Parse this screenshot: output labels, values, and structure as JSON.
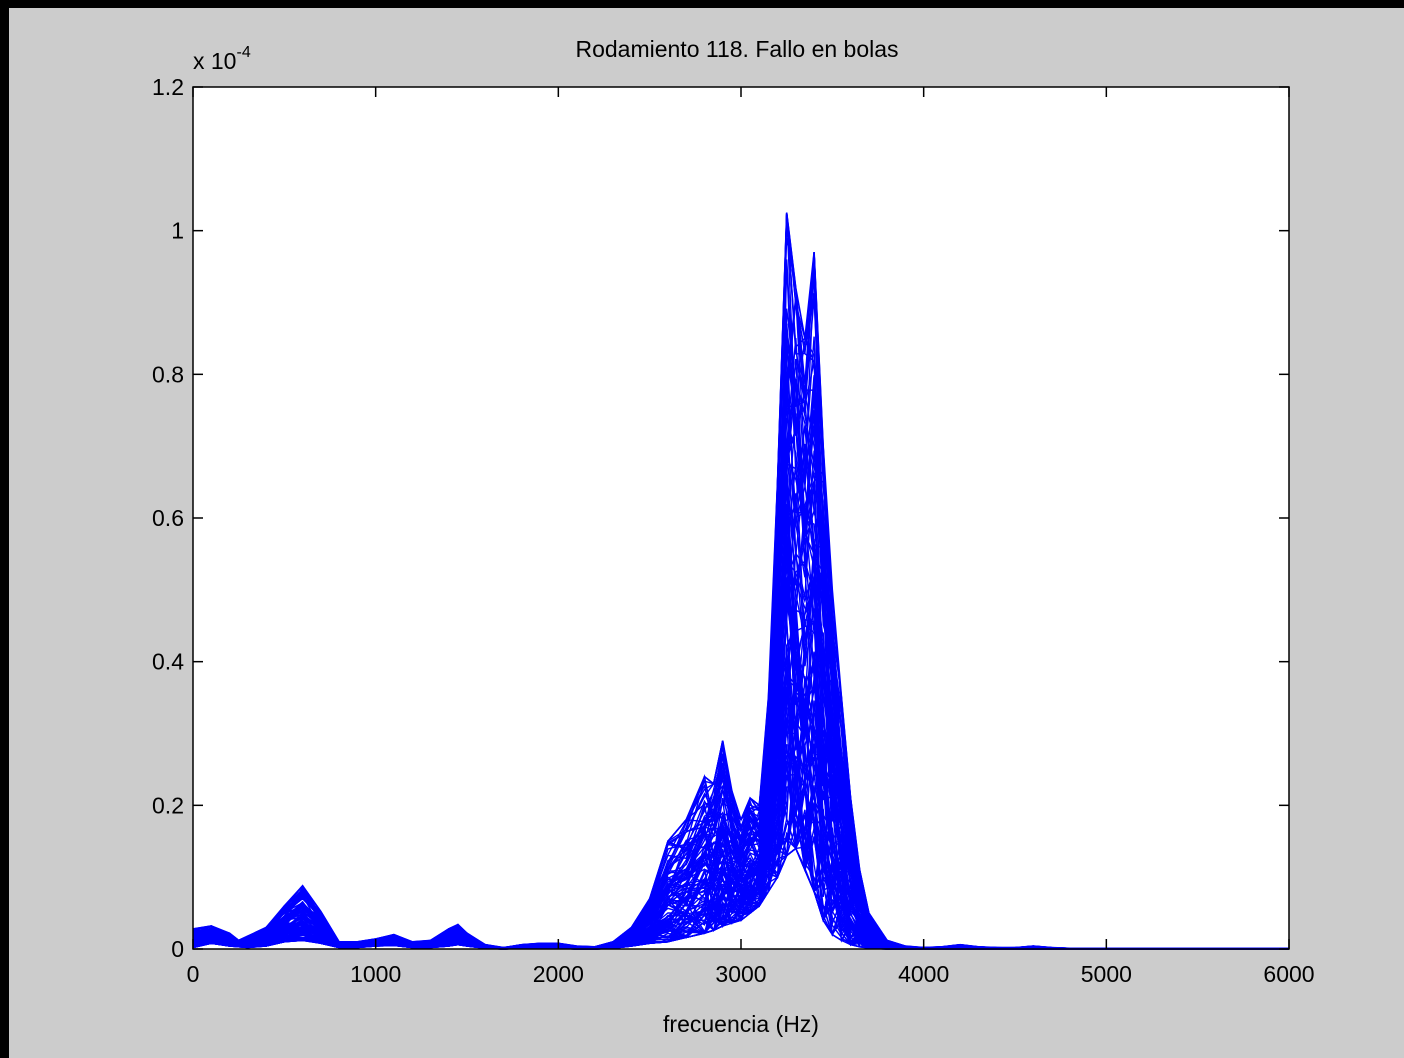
{
  "colors": {
    "figure_background": "#cccccc",
    "axes_background": "#ffffff",
    "series": "#0000ff",
    "axes": "#000000"
  },
  "chart_data": {
    "type": "line",
    "title": "Rodamiento 118. Fallo en bolas",
    "xlabel": "frecuencia (Hz)",
    "ylabel": "",
    "xlim": [
      0,
      6000
    ],
    "ylim": [
      0,
      0.00012
    ],
    "y_multiplier_label": "x 10",
    "y_multiplier_exponent": "-4",
    "xticks": [
      0,
      1000,
      2000,
      3000,
      4000,
      5000,
      6000
    ],
    "xtick_labels": [
      "0",
      "1000",
      "2000",
      "3000",
      "4000",
      "5000",
      "6000"
    ],
    "yticks": [
      0,
      2e-05,
      4e-05,
      6e-05,
      8e-05,
      0.0001,
      0.00012
    ],
    "ytick_labels": [
      "0",
      "0.2",
      "0.4",
      "0.6",
      "0.8",
      "1",
      "1.2"
    ],
    "grid": false,
    "legend": "none",
    "series_count": 120,
    "x": [
      0,
      100,
      200,
      250,
      300,
      400,
      500,
      600,
      700,
      800,
      900,
      1000,
      1100,
      1200,
      1300,
      1400,
      1450,
      1500,
      1600,
      1700,
      1800,
      1900,
      2000,
      2100,
      2200,
      2300,
      2400,
      2500,
      2600,
      2700,
      2800,
      2850,
      2900,
      2950,
      3000,
      3050,
      3100,
      3150,
      3200,
      3250,
      3300,
      3350,
      3400,
      3450,
      3500,
      3550,
      3600,
      3650,
      3700,
      3800,
      3900,
      4000,
      4100,
      4200,
      4300,
      4400,
      4500,
      4600,
      4700,
      4800,
      5000,
      5200,
      5400,
      5600,
      5800,
      6000
    ],
    "envelope_max": [
      2.8e-06,
      3.2e-06,
      2.2e-06,
      1.2e-06,
      1.8e-06,
      3e-06,
      6e-06,
      8.8e-06,
      5.2e-06,
      1e-06,
      1e-06,
      1.4e-06,
      2e-06,
      1e-06,
      1.2e-06,
      2.8e-06,
      3.4e-06,
      2.2e-06,
      6e-07,
      2e-07,
      6e-07,
      8e-07,
      8e-07,
      4e-07,
      3e-07,
      1e-06,
      3e-06,
      7e-06,
      1.5e-05,
      1.8e-05,
      2.4e-05,
      2.3e-05,
      2.9e-05,
      2.2e-05,
      1.8e-05,
      2.1e-05,
      2e-05,
      3.5e-05,
      6.5e-05,
      0.0001025,
      9.2e-05,
      8.5e-05,
      9.7e-05,
      7e-05,
      5e-05,
      3.5e-05,
      2.1e-05,
      1.1e-05,
      5e-06,
      1.2e-06,
      4e-07,
      2e-07,
      3e-07,
      6e-07,
      3e-07,
      2e-07,
      2e-07,
      4e-07,
      2e-07,
      1e-07,
      1e-07,
      1e-07,
      1e-07,
      1e-07,
      1e-07,
      1e-07
    ],
    "envelope_min": [
      2e-07,
      8e-07,
      4e-07,
      3e-07,
      2e-07,
      4e-07,
      1e-06,
      1.2e-06,
      8e-07,
      2e-07,
      2e-07,
      4e-07,
      5e-07,
      2e-07,
      2e-07,
      4e-07,
      6e-07,
      4e-07,
      1e-07,
      0.0,
      1e-07,
      1e-07,
      1e-07,
      0.0,
      0.0,
      1e-07,
      4e-07,
      8e-07,
      1e-06,
      1.6e-06,
      2.2e-06,
      2.6e-06,
      3.2e-06,
      3.6e-06,
      4e-06,
      5e-06,
      6e-06,
      8e-06,
      1e-05,
      1.3e-05,
      1.4e-05,
      1.1e-05,
      8e-06,
      4e-06,
      2e-06,
      1.2e-06,
      6e-07,
      3e-07,
      1e-07,
      0.0,
      0.0,
      0.0,
      0.0,
      0.0,
      0.0,
      0.0,
      0.0,
      0.0,
      0.0,
      0.0,
      0.0,
      0.0,
      0.0,
      0.0,
      0.0,
      0.0
    ]
  }
}
